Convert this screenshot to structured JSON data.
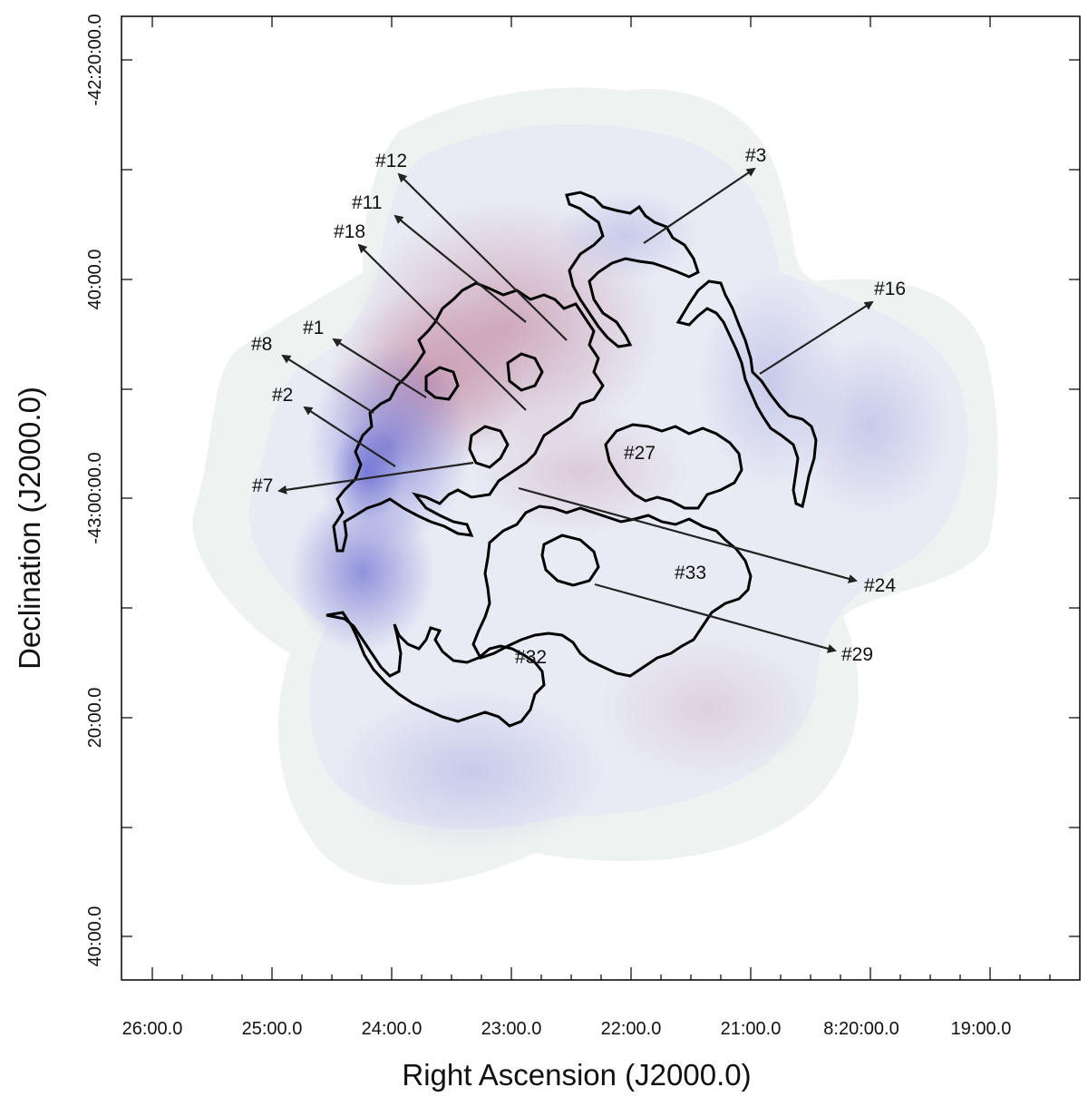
{
  "axes": {
    "x_title": "Right Ascension (J2000.0)",
    "y_title": "Declination (J2000.0)",
    "x_tick_labels": [
      "26:00.0",
      "25:00.0",
      "24:00.0",
      "23:00.0",
      "22:00.0",
      "21:00.0",
      "8:20:00.0",
      "19:00.0"
    ],
    "y_tick_labels": [
      "-42:20:00.0",
      "40:00.0",
      "-43:00:00.0",
      "20:00.0",
      "40:00.0"
    ]
  },
  "region_labels": [
    "#12",
    "#3",
    "#11",
    "#18",
    "#16",
    "#1",
    "#8",
    "#2",
    "#27",
    "#7",
    "#33",
    "#24",
    "#32",
    "#29"
  ],
  "colors": {
    "emission_blue": "#5a5ad0",
    "emission_red": "#b0708e",
    "background_field": "#eef2f0",
    "contour": "#000000"
  }
}
